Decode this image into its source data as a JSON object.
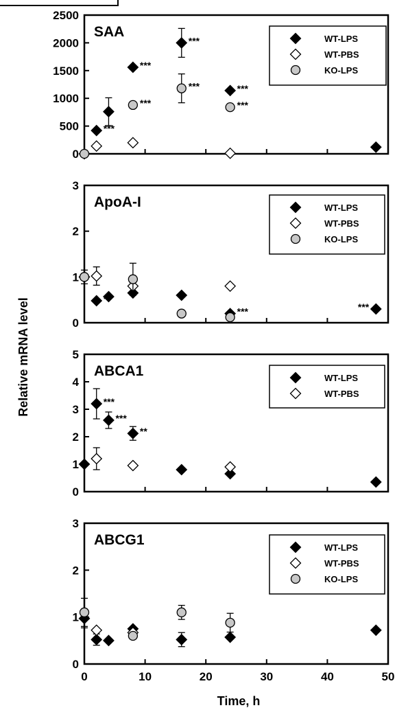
{
  "figure": {
    "ylabel": "Relative mRNA level",
    "xlabel": "Time, h"
  },
  "chart_data": [
    {
      "type": "scatter",
      "title": "SAA",
      "xlim": [
        0,
        50
      ],
      "xticks": [
        0,
        10,
        20,
        30,
        40,
        50
      ],
      "ylim": [
        0,
        2500
      ],
      "yticks": [
        0,
        500,
        1000,
        1500,
        2000,
        2500
      ],
      "legend": [
        "WT-LPS",
        "WT-PBS",
        "KO-LPS"
      ],
      "legend_position": "top-right",
      "series": [
        {
          "name": "WT-LPS",
          "marker": "diamond",
          "fill": "#000000",
          "points": [
            {
              "x": 0,
              "y": 0
            },
            {
              "x": 2,
              "y": 420,
              "label": "***"
            },
            {
              "x": 4,
              "y": 760,
              "err": 250
            },
            {
              "x": 8,
              "y": 1560,
              "label": "***"
            },
            {
              "x": 16,
              "y": 2000,
              "err": 260,
              "label": "***"
            },
            {
              "x": 24,
              "y": 1140,
              "label": "***"
            },
            {
              "x": 48,
              "y": 120
            }
          ]
        },
        {
          "name": "WT-PBS",
          "marker": "diamond",
          "fill": "#ffffff",
          "points": [
            {
              "x": 2,
              "y": 140
            },
            {
              "x": 8,
              "y": 200
            },
            {
              "x": 24,
              "y": 10
            }
          ]
        },
        {
          "name": "KO-LPS",
          "marker": "circle",
          "fill": "#c8c8c8",
          "points": [
            {
              "x": 0,
              "y": 0
            },
            {
              "x": 8,
              "y": 880,
              "label": "***"
            },
            {
              "x": 16,
              "y": 1180,
              "err": 260,
              "label": "***"
            },
            {
              "x": 24,
              "y": 840,
              "label": "***"
            }
          ]
        }
      ]
    },
    {
      "type": "scatter",
      "title": "ApoA-I",
      "xlim": [
        0,
        50
      ],
      "xticks": [
        0,
        10,
        20,
        30,
        40,
        50
      ],
      "ylim": [
        0,
        3
      ],
      "yticks": [
        0,
        1,
        2,
        3
      ],
      "legend": [
        "WT-LPS",
        "WT-PBS",
        "KO-LPS"
      ],
      "legend_position": "top-right",
      "series": [
        {
          "name": "WT-LPS",
          "marker": "diamond",
          "fill": "#000000",
          "points": [
            {
              "x": 0,
              "y": 1.0,
              "err": 0.15
            },
            {
              "x": 2,
              "y": 0.48,
              "label": "**"
            },
            {
              "x": 4,
              "y": 0.57
            },
            {
              "x": 8,
              "y": 0.65
            },
            {
              "x": 16,
              "y": 0.6
            },
            {
              "x": 24,
              "y": 0.2,
              "label": "***"
            },
            {
              "x": 48,
              "y": 0.3,
              "label": "***"
            }
          ]
        },
        {
          "name": "WT-PBS",
          "marker": "diamond",
          "fill": "#ffffff",
          "points": [
            {
              "x": 0,
              "y": 1.0
            },
            {
              "x": 2,
              "y": 1.02,
              "err": 0.2
            },
            {
              "x": 8,
              "y": 0.8
            },
            {
              "x": 24,
              "y": 0.8
            }
          ]
        },
        {
          "name": "KO-LPS",
          "marker": "circle",
          "fill": "#c8c8c8",
          "points": [
            {
              "x": 0,
              "y": 1.0
            },
            {
              "x": 8,
              "y": 0.95,
              "err": 0.35
            },
            {
              "x": 16,
              "y": 0.2
            },
            {
              "x": 24,
              "y": 0.12
            }
          ]
        }
      ]
    },
    {
      "type": "scatter",
      "title": "ABCA1",
      "xlim": [
        0,
        50
      ],
      "xticks": [
        0,
        10,
        20,
        30,
        40,
        50
      ],
      "ylim": [
        0,
        5
      ],
      "yticks": [
        0,
        1,
        2,
        3,
        4,
        5
      ],
      "legend": [
        "WT-LPS",
        "WT-PBS"
      ],
      "legend_position": "top-right",
      "series": [
        {
          "name": "WT-LPS",
          "marker": "diamond",
          "fill": "#000000",
          "points": [
            {
              "x": 0,
              "y": 1.0
            },
            {
              "x": 2,
              "y": 3.2,
              "err": 0.55,
              "label": "***"
            },
            {
              "x": 4,
              "y": 2.6,
              "err": 0.3,
              "label": "***"
            },
            {
              "x": 8,
              "y": 2.12,
              "err": 0.25,
              "label": "**"
            },
            {
              "x": 16,
              "y": 0.8
            },
            {
              "x": 24,
              "y": 0.65
            },
            {
              "x": 48,
              "y": 0.35
            }
          ]
        },
        {
          "name": "WT-PBS",
          "marker": "diamond",
          "fill": "#ffffff",
          "points": [
            {
              "x": 2,
              "y": 1.2,
              "err": 0.4
            },
            {
              "x": 8,
              "y": 0.95
            },
            {
              "x": 24,
              "y": 0.9
            }
          ]
        }
      ]
    },
    {
      "type": "scatter",
      "title": "ABCG1",
      "xlabel": "Time, h",
      "xlim": [
        0,
        50
      ],
      "xticks": [
        0,
        10,
        20,
        30,
        40,
        50
      ],
      "ylim": [
        0,
        3
      ],
      "yticks": [
        0,
        1,
        2,
        3
      ],
      "legend": [
        "WT-LPS",
        "WT-PBS",
        "KO-LPS"
      ],
      "legend_position": "top-right",
      "series": [
        {
          "name": "WT-LPS",
          "marker": "diamond",
          "fill": "#000000",
          "points": [
            {
              "x": 0,
              "y": 0.97,
              "err": 0.2
            },
            {
              "x": 2,
              "y": 0.52,
              "err": 0.12
            },
            {
              "x": 4,
              "y": 0.5
            },
            {
              "x": 8,
              "y": 0.75
            },
            {
              "x": 16,
              "y": 0.52,
              "err": 0.15
            },
            {
              "x": 24,
              "y": 0.57
            },
            {
              "x": 48,
              "y": 0.72
            }
          ]
        },
        {
          "name": "WT-PBS",
          "marker": "diamond",
          "fill": "#ffffff",
          "points": [
            {
              "x": 2,
              "y": 0.72
            },
            {
              "x": 8,
              "y": 0.67
            }
          ]
        },
        {
          "name": "KO-LPS",
          "marker": "circle",
          "fill": "#c8c8c8",
          "points": [
            {
              "x": 0,
              "y": 1.1,
              "err": 0.3
            },
            {
              "x": 8,
              "y": 0.6
            },
            {
              "x": 16,
              "y": 1.1,
              "err": 0.15
            },
            {
              "x": 24,
              "y": 0.88,
              "err": 0.2
            }
          ]
        }
      ]
    }
  ]
}
